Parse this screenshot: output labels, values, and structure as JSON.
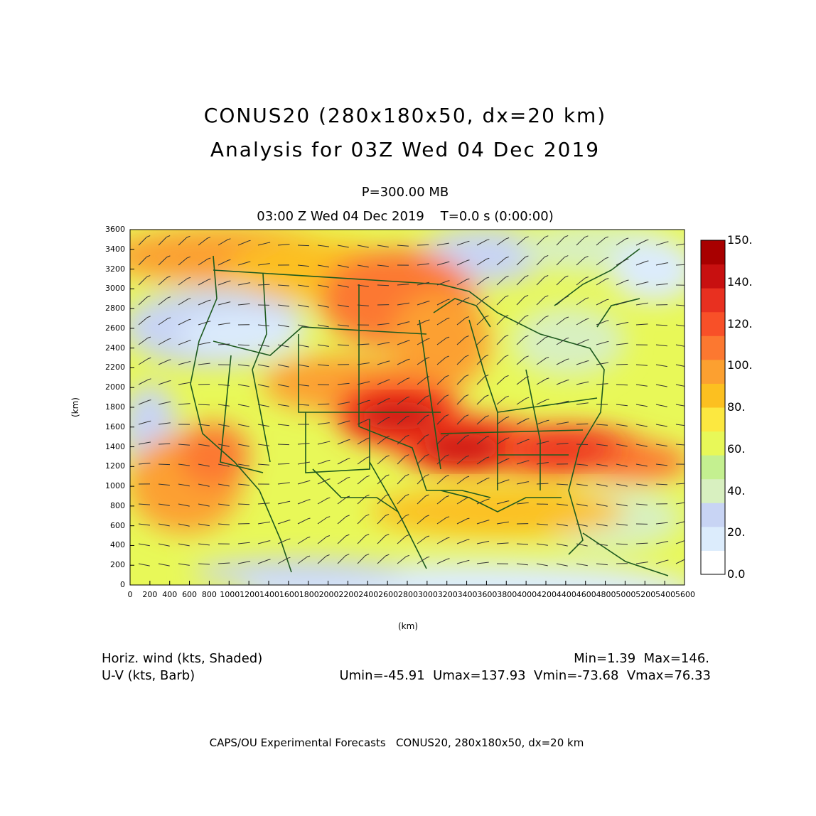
{
  "header": {
    "title_line1": "CONUS20 (280x180x50, dx=20 km)",
    "title_line2": "Analysis for 03Z Wed 04 Dec 2019",
    "level": "P=300.00 MB",
    "valid_time": "03:00 Z Wed 04 Dec 2019    T=0.0 s (0:00:00)"
  },
  "axes": {
    "x_ticks": [
      "0",
      "200",
      "400",
      "600",
      "800",
      "1000",
      "1200",
      "1400",
      "1600",
      "1800",
      "2000",
      "2200",
      "2400",
      "2600",
      "2800",
      "3000",
      "3200",
      "3400",
      "3600",
      "3800",
      "4000",
      "4200",
      "4400",
      "4600",
      "4800",
      "5000",
      "5200",
      "5400",
      "5600"
    ],
    "y_ticks": [
      "0",
      "200",
      "400",
      "600",
      "800",
      "1000",
      "1200",
      "1400",
      "1600",
      "1800",
      "2000",
      "2200",
      "2400",
      "2600",
      "2800",
      "3000",
      "3200",
      "3400",
      "3600"
    ],
    "x_label": "(km)",
    "y_label": "(km)",
    "x_range": [
      0,
      5600
    ],
    "y_range": [
      0,
      3600
    ]
  },
  "colorbar": {
    "labels": [
      "150.",
      "140.",
      "120.",
      "100.",
      "80.",
      "60.",
      "40.",
      "20.",
      "0.0"
    ],
    "colors": [
      "#ffffff",
      "#dcecfc",
      "#c8d4f4",
      "#d8f0c0",
      "#c4f090",
      "#e8f858",
      "#fce840",
      "#fcc020",
      "#fca030",
      "#fc7830",
      "#f85028",
      "#e83020",
      "#c81010",
      "#a80000"
    ]
  },
  "field_info": {
    "shaded_desc": "Horiz. wind (kts, Shaded)",
    "barb_desc": "U-V (kts, Barb)",
    "minmax": "Min=1.39  Max=146.",
    "uv_stats": "Umin=-45.91  Umax=137.93  Vmin=-73.68  Vmax=76.33"
  },
  "footer": {
    "credit": "CAPS/OU Experimental Forecasts   CONUS20, 280x180x50, dx=20 km"
  }
}
